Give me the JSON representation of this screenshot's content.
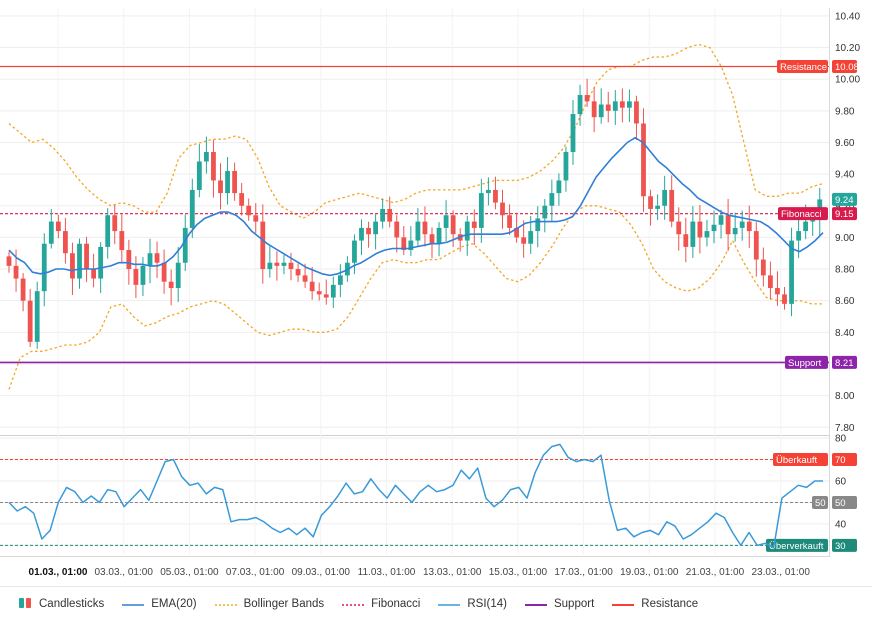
{
  "colors": {
    "up": "#26a69a",
    "down": "#ef5350",
    "ema": "#2f7ed8",
    "bollinger": "#f5a623",
    "fibonacci": "#d81b4e",
    "rsi": "#3a9ad9",
    "support": "#8e24aa",
    "resistance": "#f44336",
    "current_price": "#26a69a",
    "grid": "#eeeeee",
    "axis_text": "#333333",
    "rsi_overbought": "#f44336",
    "rsi_mid": "#888888",
    "rsi_oversold": "#1d8a7a"
  },
  "chart_data": [
    {
      "type": "candlestick",
      "y_ticks": [
        7.8,
        8.0,
        8.2,
        8.4,
        8.6,
        8.8,
        9.0,
        9.2,
        9.4,
        9.6,
        9.8,
        10.0,
        10.2,
        10.4
      ],
      "ylim": [
        7.77,
        10.45
      ],
      "grid": true,
      "x_tick_labels": [
        "01.03., 01:00",
        "03.03., 01:00",
        "05.03., 01:00",
        "07.03., 01:00",
        "09.03., 01:00",
        "11.03., 01:00",
        "13.03., 01:00",
        "15.03., 01:00",
        "17.03., 01:00",
        "19.03., 01:00",
        "21.03., 01:00",
        "23.03., 01:00"
      ],
      "x_tick_bold": "01.03., 01:00",
      "candle_period_hours": 4,
      "close": [
        8.82,
        8.74,
        8.6,
        8.34,
        8.66,
        8.96,
        9.1,
        9.04,
        8.9,
        8.74,
        8.96,
        8.8,
        8.74,
        8.94,
        9.14,
        9.04,
        8.92,
        8.8,
        8.7,
        8.82,
        8.9,
        8.84,
        8.72,
        8.68,
        8.84,
        9.06,
        9.3,
        9.48,
        9.54,
        9.36,
        9.28,
        9.42,
        9.28,
        9.2,
        9.14,
        9.1,
        8.8,
        8.84,
        8.82,
        8.84,
        8.8,
        8.76,
        8.72,
        8.66,
        8.64,
        8.62,
        8.7,
        8.76,
        8.84,
        8.98,
        9.06,
        9.02,
        9.1,
        9.18,
        9.1,
        9.0,
        8.92,
        8.98,
        9.1,
        9.02,
        8.96,
        9.06,
        9.14,
        9.02,
        8.98,
        9.1,
        9.06,
        9.28,
        9.3,
        9.22,
        9.14,
        9.06,
        9.0,
        8.96,
        9.04,
        9.12,
        9.2,
        9.28,
        9.36,
        9.54,
        9.78,
        9.9,
        9.86,
        9.76,
        9.84,
        9.8,
        9.86,
        9.82,
        9.86,
        9.72,
        9.26,
        9.18,
        9.2,
        9.3,
        9.1,
        9.02,
        8.94,
        9.1,
        9.0,
        9.04,
        9.08,
        9.14,
        9.02,
        9.06,
        9.1,
        9.04,
        8.86,
        8.76,
        8.68,
        8.64,
        8.58,
        8.98,
        9.04,
        9.1,
        9.12,
        9.24
      ],
      "current_price_label": "9.24",
      "series": [
        {
          "name": "EMA(20)",
          "values": [
            8.92,
            8.87,
            8.84,
            8.78,
            8.77,
            8.78,
            8.8,
            8.8,
            8.79,
            8.8,
            8.8,
            8.8,
            8.81,
            8.82,
            8.84,
            8.84,
            8.83,
            8.83,
            8.82,
            8.82,
            8.84,
            8.88,
            8.94,
            9.02,
            9.08,
            9.12,
            9.14,
            9.16,
            9.16,
            9.14,
            9.1,
            9.04,
            9.0,
            8.96,
            8.93,
            8.9,
            8.87,
            8.84,
            8.81,
            8.79,
            8.77,
            8.76,
            8.77,
            8.79,
            8.82,
            8.84,
            8.87,
            8.9,
            8.92,
            8.93,
            8.93,
            8.93,
            8.94,
            8.95,
            8.96,
            8.96,
            8.97,
            8.99,
            9.01,
            9.02,
            9.02,
            9.02,
            9.02,
            9.02,
            9.03,
            9.06,
            9.09,
            9.1,
            9.1,
            9.1,
            9.1,
            9.11,
            9.13,
            9.2,
            9.29,
            9.38,
            9.44,
            9.5,
            9.55,
            9.6,
            9.63,
            9.6,
            9.54,
            9.48,
            9.44,
            9.39,
            9.34,
            9.3,
            9.25,
            9.22,
            9.19,
            9.16,
            9.14,
            9.13,
            9.12,
            9.11,
            9.1,
            9.07,
            9.03,
            8.98,
            8.93,
            8.91,
            8.94,
            8.98,
            9.03
          ]
        },
        {
          "name": "Bollinger Upper",
          "values": [
            9.72,
            9.66,
            9.6,
            9.62,
            9.56,
            9.48,
            9.38,
            9.3,
            9.24,
            9.2,
            9.22,
            9.2,
            9.16,
            9.16,
            9.28,
            9.5,
            9.58,
            9.6,
            9.62,
            9.62,
            9.64,
            9.62,
            9.5,
            9.32,
            9.2,
            9.16,
            9.12,
            9.16,
            9.22,
            9.24,
            9.26,
            9.28,
            9.26,
            9.24,
            9.22,
            9.24,
            9.28,
            9.3,
            9.3,
            9.3,
            9.3,
            9.32,
            9.34,
            9.36,
            9.36,
            9.36,
            9.38,
            9.42,
            9.48,
            9.56,
            9.68,
            9.84,
            9.98,
            10.06,
            10.08,
            10.08,
            10.12,
            10.14,
            10.14,
            10.16,
            10.2,
            10.22,
            10.2,
            10.08,
            9.9,
            9.6,
            9.3,
            9.26,
            9.26,
            9.28,
            9.28,
            9.32,
            9.34
          ]
        },
        {
          "name": "Bollinger Lower",
          "values": [
            8.04,
            8.24,
            8.28,
            8.28,
            8.3,
            8.32,
            8.32,
            8.34,
            8.4,
            8.56,
            8.58,
            8.5,
            8.44,
            8.46,
            8.5,
            8.52,
            8.56,
            8.58,
            8.6,
            8.58,
            8.52,
            8.46,
            8.4,
            8.38,
            8.4,
            8.42,
            8.42,
            8.4,
            8.4,
            8.42,
            8.5,
            8.62,
            8.74,
            8.84,
            8.86,
            8.84,
            8.84,
            8.86,
            8.86,
            8.9,
            8.94,
            8.96,
            8.9,
            8.82,
            8.74,
            8.72,
            8.76,
            8.84,
            8.94,
            9.06,
            9.16,
            9.2,
            9.2,
            9.18,
            9.16,
            9.08,
            8.96,
            8.8,
            8.72,
            8.68,
            8.66,
            8.68,
            8.74,
            8.84,
            8.98,
            8.84,
            8.72,
            8.62,
            8.6,
            8.6,
            8.6,
            8.58,
            8.58
          ]
        },
        {
          "name": "Fibonacci",
          "value": 9.15,
          "label": "Fibonacci",
          "value_label": "9.15"
        },
        {
          "name": "Support",
          "value": 8.21,
          "label": "Support",
          "value_label": "8.21"
        },
        {
          "name": "Resistance",
          "value": 10.08,
          "label": "Resistance",
          "value_label": "10.08"
        }
      ]
    },
    {
      "type": "line",
      "y_ticks": [
        30,
        40,
        50,
        60,
        70,
        80
      ],
      "ylim": [
        26,
        80
      ],
      "series": [
        {
          "name": "RSI(14)",
          "values": [
            50,
            46,
            48,
            45,
            33,
            37,
            50,
            57,
            55,
            50,
            53,
            50,
            56,
            55,
            48,
            52,
            56,
            51,
            60,
            69,
            70,
            62,
            58,
            59,
            54,
            57,
            56,
            41,
            42,
            42,
            43,
            41,
            38,
            36,
            38,
            35,
            38,
            34,
            44,
            48,
            53,
            59,
            54,
            55,
            61,
            56,
            52,
            58,
            54,
            50,
            55,
            58,
            55,
            56,
            58,
            65,
            61,
            66,
            52,
            48,
            51,
            56,
            57,
            52,
            64,
            72,
            76,
            77,
            71,
            69,
            70,
            69,
            72,
            51,
            37,
            38,
            34,
            36,
            37,
            35,
            41,
            39,
            33,
            35,
            38,
            41,
            45,
            43,
            36,
            30,
            36,
            30,
            31,
            29,
            52,
            55,
            58,
            57,
            60,
            60
          ]
        },
        {
          "name": "Überkauft",
          "value": 70,
          "label": "Überkauft",
          "value_label": "70"
        },
        {
          "name": "Mid",
          "value": 50,
          "label": "50",
          "value_label": "50"
        },
        {
          "name": "Überverkauft",
          "value": 30,
          "label": "Überverkauft",
          "value_label": "30"
        }
      ]
    }
  ],
  "legend": {
    "placement": "bottom-left",
    "items": [
      {
        "label": "Candlesticks",
        "icon": "candlestick-icon"
      },
      {
        "label": "EMA(20)",
        "icon": "line-icon"
      },
      {
        "label": "Bollinger Bands",
        "icon": "dotted-line-icon"
      },
      {
        "label": "Fibonacci",
        "icon": "dotted-line-icon"
      },
      {
        "label": "RSI(14)",
        "icon": "line-icon"
      },
      {
        "label": "Support",
        "icon": "line-icon"
      },
      {
        "label": "Resistance",
        "icon": "line-icon"
      }
    ]
  }
}
